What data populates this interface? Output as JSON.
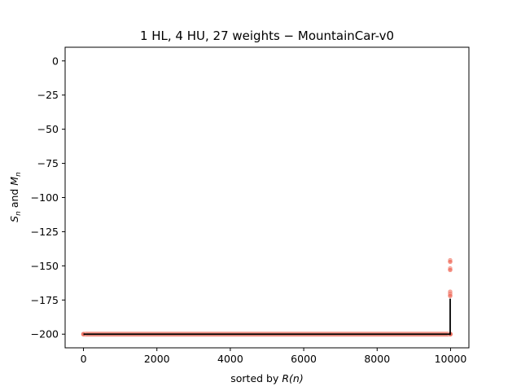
{
  "chart_data": {
    "type": "scatter",
    "title": "1 HL, 4 HU, 27 weights − MountainCar-v0",
    "xlabel": {
      "prefix": "sorted by ",
      "math": "R(n)"
    },
    "ylabel": {
      "s": "S",
      "s_sub": "n",
      "mid": " and ",
      "m": "M",
      "m_sub": "n"
    },
    "xlim": [
      -500,
      10500
    ],
    "ylim": [
      -210,
      10
    ],
    "x_ticks": [
      0,
      2000,
      4000,
      6000,
      8000,
      10000
    ],
    "x_tick_labels": [
      "0",
      "2000",
      "4000",
      "6000",
      "8000",
      "10000"
    ],
    "y_ticks": [
      0,
      -25,
      -50,
      -75,
      -100,
      -125,
      -150,
      -175,
      -200
    ],
    "y_tick_labels": [
      "0",
      "−25",
      "−50",
      "−75",
      "−100",
      "−125",
      "−150",
      "−175",
      "−200"
    ],
    "grid": false,
    "colors": {
      "scatter": "#f07060",
      "line": "#000000"
    },
    "series": [
      {
        "kind": "scatter",
        "points": [
          {
            "x": 0,
            "y": -200
          },
          {
            "x": 9990,
            "y": -200
          },
          {
            "x": 9990,
            "y": -146
          },
          {
            "x": 9990,
            "y": -147
          },
          {
            "x": 9990,
            "y": -152
          },
          {
            "x": 9990,
            "y": -153
          },
          {
            "x": 9990,
            "y": -169
          },
          {
            "x": 9990,
            "y": -170
          },
          {
            "x": 9990,
            "y": -171
          },
          {
            "x": 9990,
            "y": -172
          },
          {
            "x": 9995,
            "y": -200
          }
        ]
      },
      {
        "kind": "line",
        "points": [
          {
            "x": 0,
            "y": -200
          },
          {
            "x": 9990,
            "y": -200
          },
          {
            "x": 9990,
            "y": -174
          }
        ]
      }
    ]
  }
}
